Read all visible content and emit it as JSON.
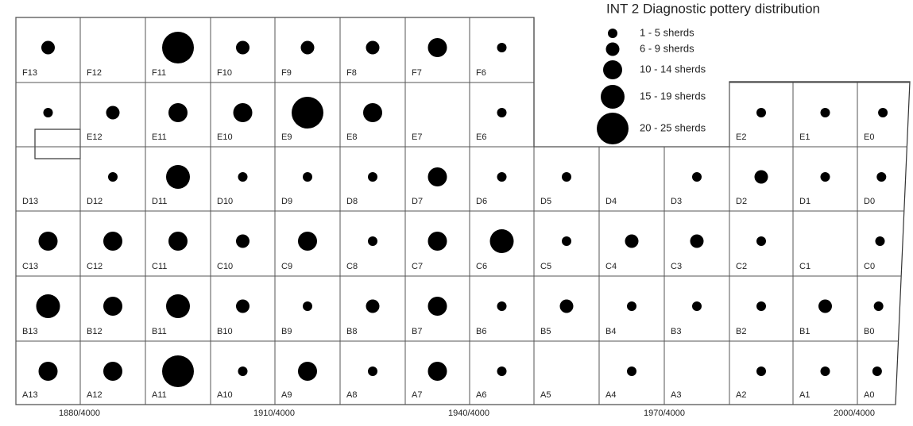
{
  "title": "INT 2 Diagnostic pottery distribution",
  "legend": [
    "1 - 5 sherds",
    "6 - 9 sherds",
    "10 - 14 sherds",
    "15 - 19 sherds",
    "20 - 25 sherds"
  ],
  "rows": [
    {
      "cells": [
        {
          "label": "F13",
          "dot": 1
        },
        {
          "label": "F12",
          "dot": null
        },
        {
          "label": "F11",
          "dot": 4
        },
        {
          "label": "F10",
          "dot": 1
        },
        {
          "label": "F9",
          "dot": 1
        },
        {
          "label": "F8",
          "dot": 1
        },
        {
          "label": "F7",
          "dot": 2
        },
        {
          "label": "F6",
          "dot": 0
        }
      ]
    },
    {
      "cells": [
        {
          "label": null,
          "dot": 0
        },
        {
          "label": "E12",
          "dot": 1
        },
        {
          "label": "E11",
          "dot": 2
        },
        {
          "label": "E10",
          "dot": 2
        },
        {
          "label": "E9",
          "dot": 4
        },
        {
          "label": "E8",
          "dot": 2
        },
        {
          "label": "E7",
          "dot": null
        },
        {
          "label": "E6",
          "dot": 0
        },
        null,
        null,
        null,
        {
          "label": "E2",
          "dot": 0
        },
        {
          "label": "E1",
          "dot": 0
        },
        {
          "label": "E0",
          "dot": 0
        }
      ]
    },
    {
      "cells": [
        {
          "label": "D13",
          "dot": null
        },
        {
          "label": "D12",
          "dot": 0
        },
        {
          "label": "D11",
          "dot": 3
        },
        {
          "label": "D10",
          "dot": 0
        },
        {
          "label": "D9",
          "dot": 0
        },
        {
          "label": "D8",
          "dot": 0
        },
        {
          "label": "D7",
          "dot": 2
        },
        {
          "label": "D6",
          "dot": 0
        },
        {
          "label": "D5",
          "dot": 0
        },
        {
          "label": "D4",
          "dot": null
        },
        {
          "label": "D3",
          "dot": 0
        },
        {
          "label": "D2",
          "dot": 1
        },
        {
          "label": "D1",
          "dot": 0
        },
        {
          "label": "D0",
          "dot": 0
        }
      ]
    },
    {
      "cells": [
        {
          "label": "C13",
          "dot": 2
        },
        {
          "label": "C12",
          "dot": 2
        },
        {
          "label": "C11",
          "dot": 2
        },
        {
          "label": "C10",
          "dot": 1
        },
        {
          "label": "C9",
          "dot": 2
        },
        {
          "label": "C8",
          "dot": 0
        },
        {
          "label": "C7",
          "dot": 2
        },
        {
          "label": "C6",
          "dot": 3
        },
        {
          "label": "C5",
          "dot": 0
        },
        {
          "label": "C4",
          "dot": 1
        },
        {
          "label": "C3",
          "dot": 1
        },
        {
          "label": "C2",
          "dot": 0
        },
        {
          "label": "C1",
          "dot": null
        },
        {
          "label": "C0",
          "dot": 0
        }
      ]
    },
    {
      "cells": [
        {
          "label": "B13",
          "dot": 3
        },
        {
          "label": "B12",
          "dot": 2
        },
        {
          "label": "B11",
          "dot": 3
        },
        {
          "label": "B10",
          "dot": 1
        },
        {
          "label": "B9",
          "dot": 0
        },
        {
          "label": "B8",
          "dot": 1
        },
        {
          "label": "B7",
          "dot": 2
        },
        {
          "label": "B6",
          "dot": 0
        },
        {
          "label": "B5",
          "dot": 1
        },
        {
          "label": "B4",
          "dot": 0
        },
        {
          "label": "B3",
          "dot": 0
        },
        {
          "label": "B2",
          "dot": 0
        },
        {
          "label": "B1",
          "dot": 1
        },
        {
          "label": "B0",
          "dot": 0
        }
      ]
    },
    {
      "cells": [
        {
          "label": "A13",
          "dot": 2
        },
        {
          "label": "A12",
          "dot": 2
        },
        {
          "label": "A11",
          "dot": 4
        },
        {
          "label": "A10",
          "dot": 0
        },
        {
          "label": "A9",
          "dot": 2
        },
        {
          "label": "A8",
          "dot": 0
        },
        {
          "label": "A7",
          "dot": 2
        },
        {
          "label": "A6",
          "dot": 0
        },
        {
          "label": "A5",
          "dot": null
        },
        {
          "label": "A4",
          "dot": 0
        },
        {
          "label": "A3",
          "dot": null
        },
        {
          "label": "A2",
          "dot": 0
        },
        {
          "label": "A1",
          "dot": 0
        },
        {
          "label": "A0",
          "dot": 0
        }
      ]
    }
  ],
  "scale": [
    "1880/4000",
    "1910/4000",
    "1940/4000",
    "1970/4000",
    "2000/4000"
  ]
}
